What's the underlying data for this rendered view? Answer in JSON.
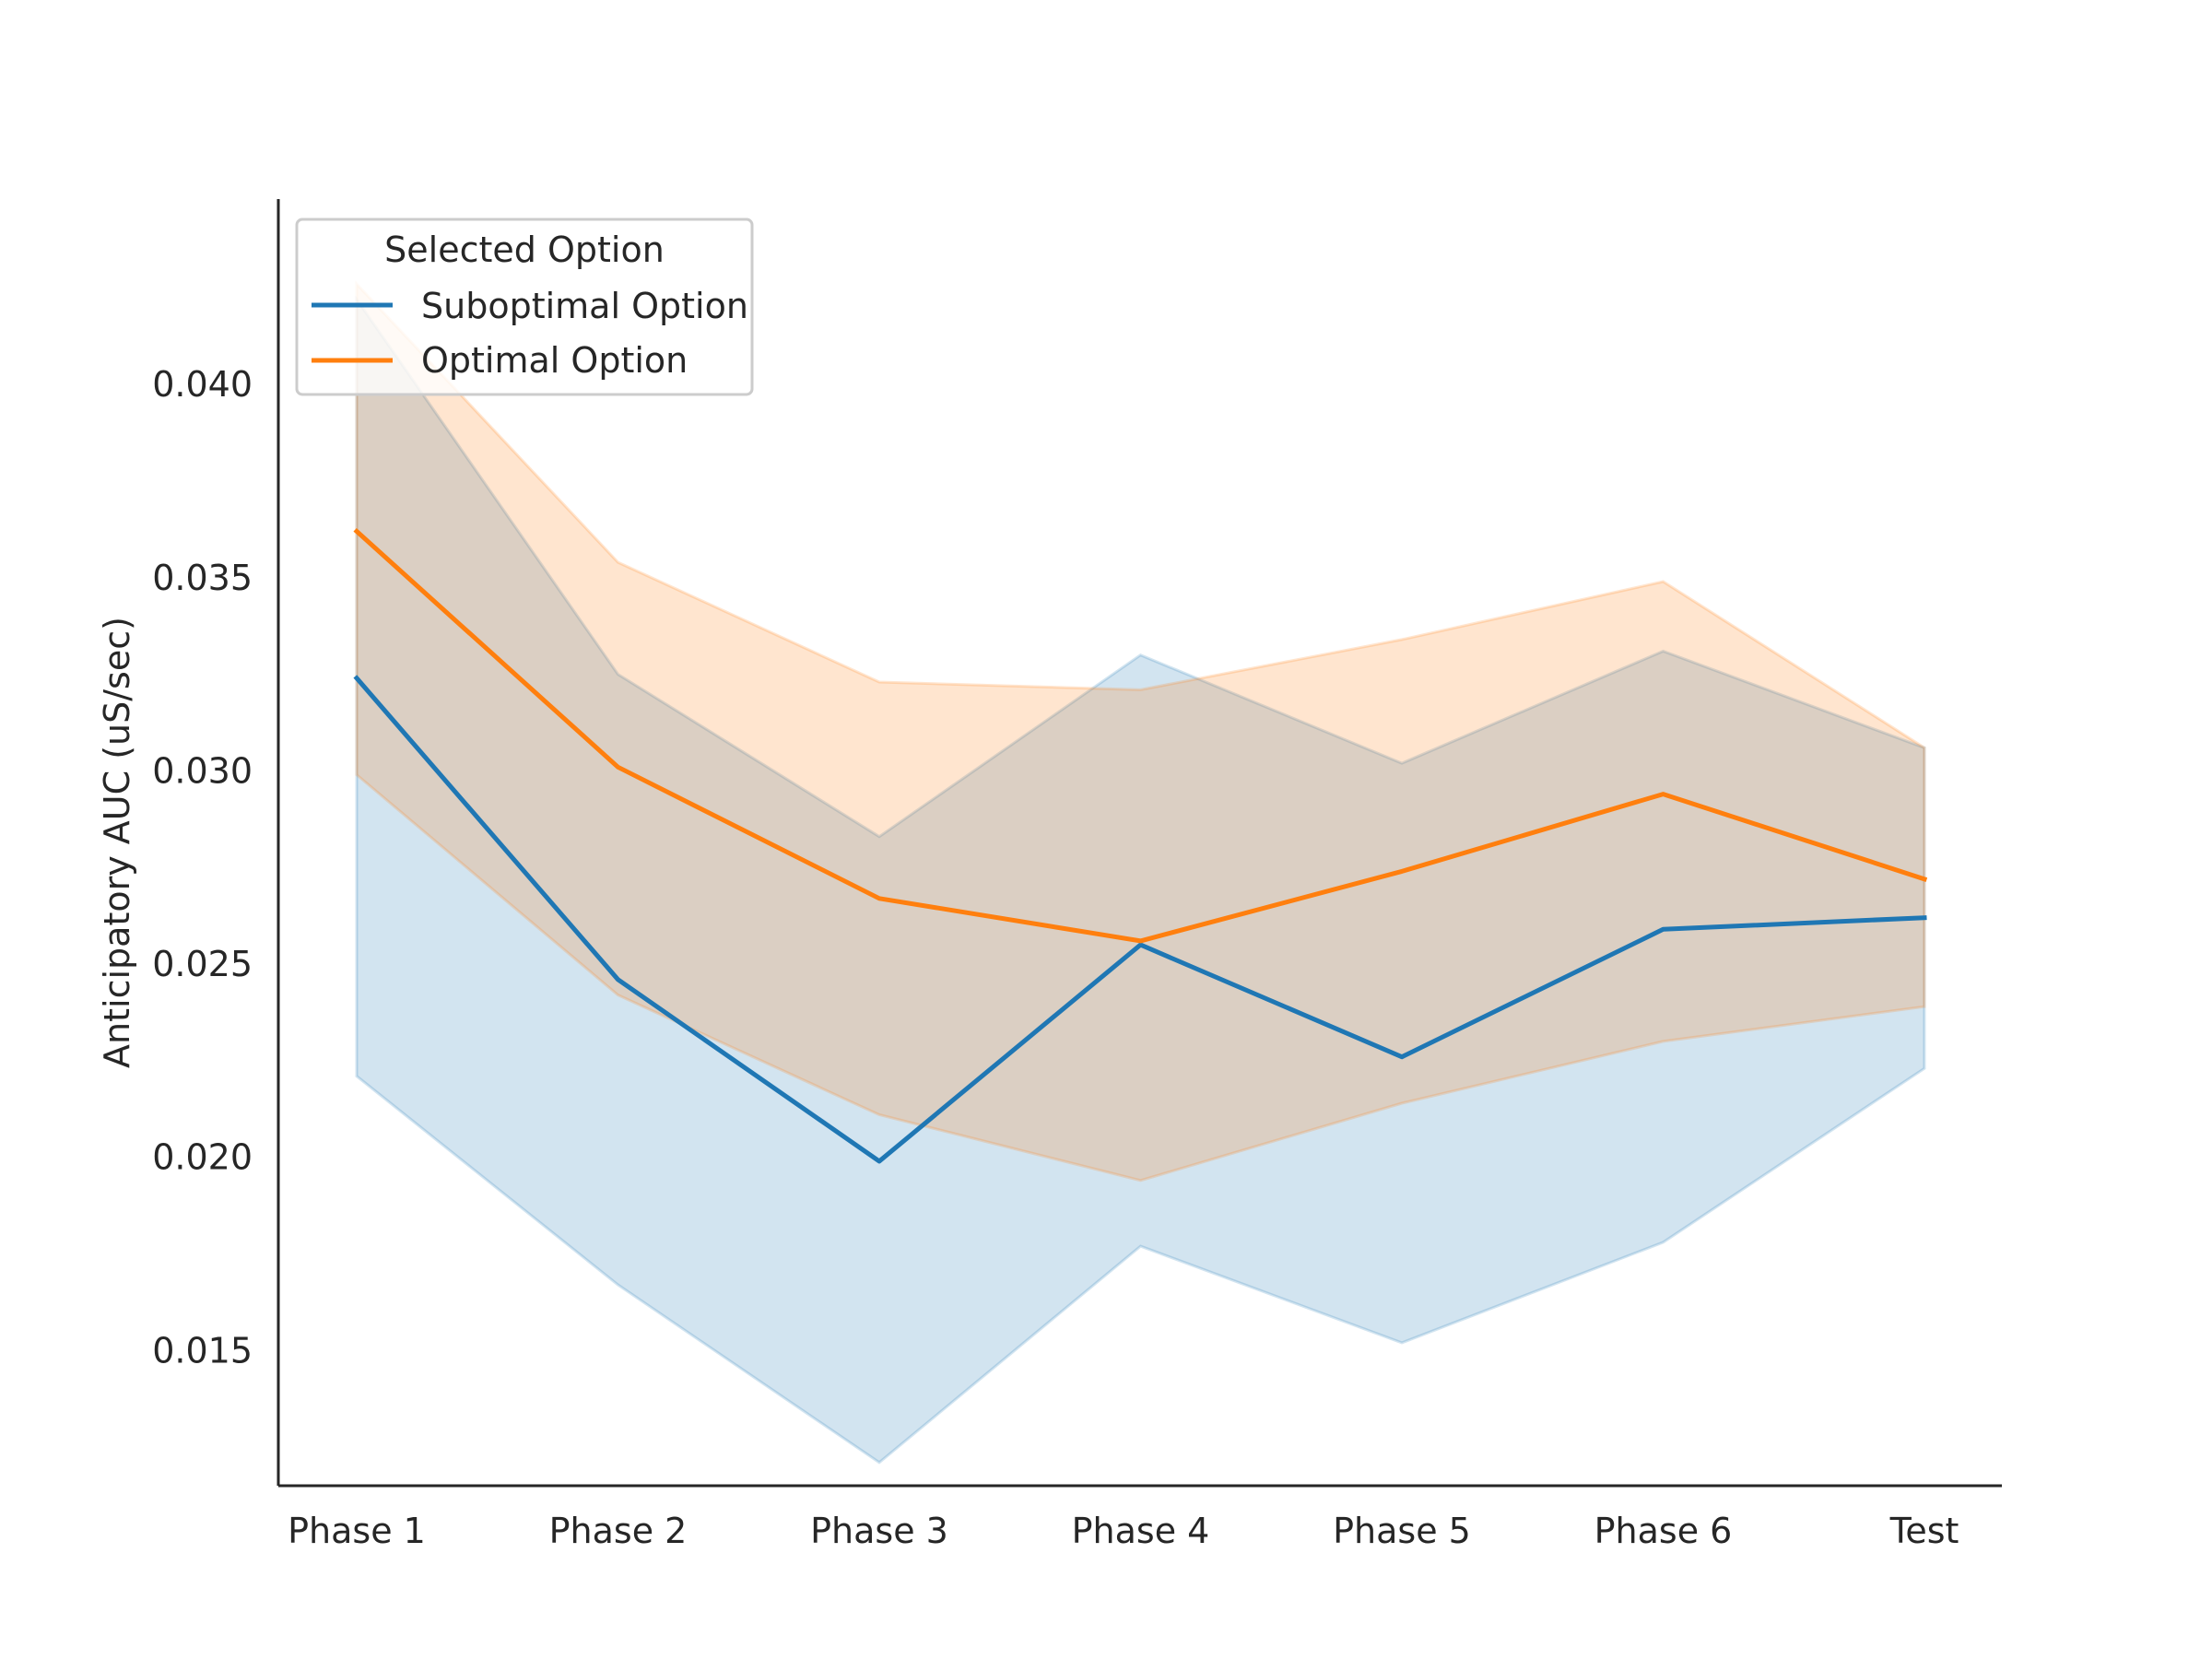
{
  "chart_data": {
    "type": "line",
    "title": "",
    "xlabel": "",
    "ylabel": "Anticipatory AUC (uS/sec)",
    "categories": [
      "Phase 1",
      "Phase 2",
      "Phase 3",
      "Phase 4",
      "Phase 5",
      "Phase 6",
      "Test"
    ],
    "ylim": [
      0.0115,
      0.0448
    ],
    "yticks": [
      0.015,
      0.02,
      0.025,
      0.03,
      0.035,
      0.04
    ],
    "ytick_labels": [
      "0.015",
      "0.020",
      "0.025",
      "0.030",
      "0.035",
      "0.040"
    ],
    "grid": false,
    "legend": {
      "title": "Selected Option",
      "placement": "top-left"
    },
    "series": [
      {
        "name": "Suboptimal Option",
        "color": "#1f77b4",
        "values": [
          0.0324,
          0.0246,
          0.0199,
          0.0255,
          0.0226,
          0.0259,
          0.0262
        ],
        "ci_low": [
          0.0221,
          0.0167,
          0.0121,
          0.0177,
          0.0152,
          0.0178,
          0.0223
        ],
        "ci_high": [
          0.0422,
          0.0325,
          0.0283,
          0.033,
          0.0302,
          0.0331,
          0.0306
        ]
      },
      {
        "name": "Optimal Option",
        "color": "#ff7f0e",
        "values": [
          0.0362,
          0.0301,
          0.0267,
          0.0256,
          0.0274,
          0.0294,
          0.0272
        ],
        "ci_low": [
          0.0299,
          0.0242,
          0.0211,
          0.0194,
          0.0214,
          0.023,
          0.0239
        ],
        "ci_high": [
          0.0426,
          0.0354,
          0.0323,
          0.0321,
          0.0334,
          0.0349,
          0.0306
        ]
      }
    ]
  }
}
